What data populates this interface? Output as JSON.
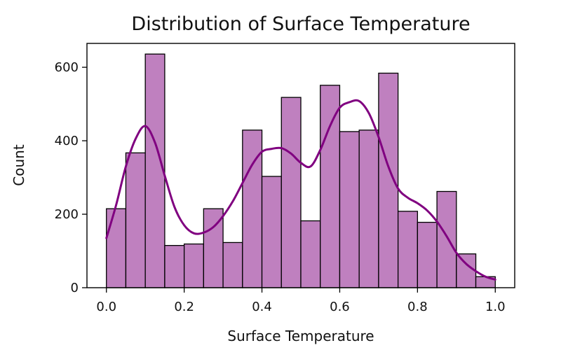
{
  "chart_data": {
    "type": "bar",
    "title": "Distribution of Surface Temperature",
    "xlabel": "Surface Temperature",
    "ylabel": "Count",
    "xlim": [
      -0.05,
      1.05
    ],
    "ylim": [
      0,
      665
    ],
    "xticks": [
      0.0,
      0.2,
      0.4,
      0.6,
      0.8,
      1.0
    ],
    "xtick_labels": [
      "0.0",
      "0.2",
      "0.4",
      "0.6",
      "0.8",
      "1.0"
    ],
    "yticks": [
      0,
      200,
      400,
      600
    ],
    "ytick_labels": [
      "0",
      "200",
      "400",
      "600"
    ],
    "grid": false,
    "bin_edges": [
      0.0,
      0.05,
      0.1,
      0.15,
      0.2,
      0.25,
      0.3,
      0.35,
      0.4,
      0.45,
      0.5,
      0.55,
      0.6,
      0.65,
      0.7,
      0.75,
      0.8,
      0.85,
      0.9,
      0.95,
      1.0
    ],
    "values": [
      215,
      367,
      636,
      115,
      119,
      215,
      123,
      429,
      303,
      518,
      182,
      551,
      425,
      429,
      584,
      208,
      178,
      262,
      92,
      30
    ],
    "kde": {
      "x": [
        0.0,
        0.025,
        0.05,
        0.075,
        0.1,
        0.125,
        0.15,
        0.175,
        0.2,
        0.225,
        0.25,
        0.275,
        0.3,
        0.325,
        0.35,
        0.375,
        0.4,
        0.425,
        0.45,
        0.475,
        0.5,
        0.525,
        0.55,
        0.575,
        0.6,
        0.625,
        0.65,
        0.675,
        0.7,
        0.725,
        0.75,
        0.775,
        0.8,
        0.825,
        0.85,
        0.875,
        0.9,
        0.925,
        0.95,
        0.975,
        1.0
      ],
      "y": [
        135,
        225,
        330,
        405,
        440,
        395,
        305,
        220,
        170,
        148,
        150,
        165,
        195,
        235,
        285,
        335,
        370,
        378,
        380,
        365,
        340,
        330,
        375,
        440,
        490,
        505,
        508,
        475,
        410,
        330,
        270,
        245,
        230,
        210,
        180,
        140,
        95,
        65,
        45,
        30,
        22
      ]
    },
    "colors": {
      "bar_fill": "#bf80bf",
      "bar_edge": "#000000",
      "kde_line": "#800080",
      "axis": "#000000",
      "text": "#111111"
    }
  }
}
